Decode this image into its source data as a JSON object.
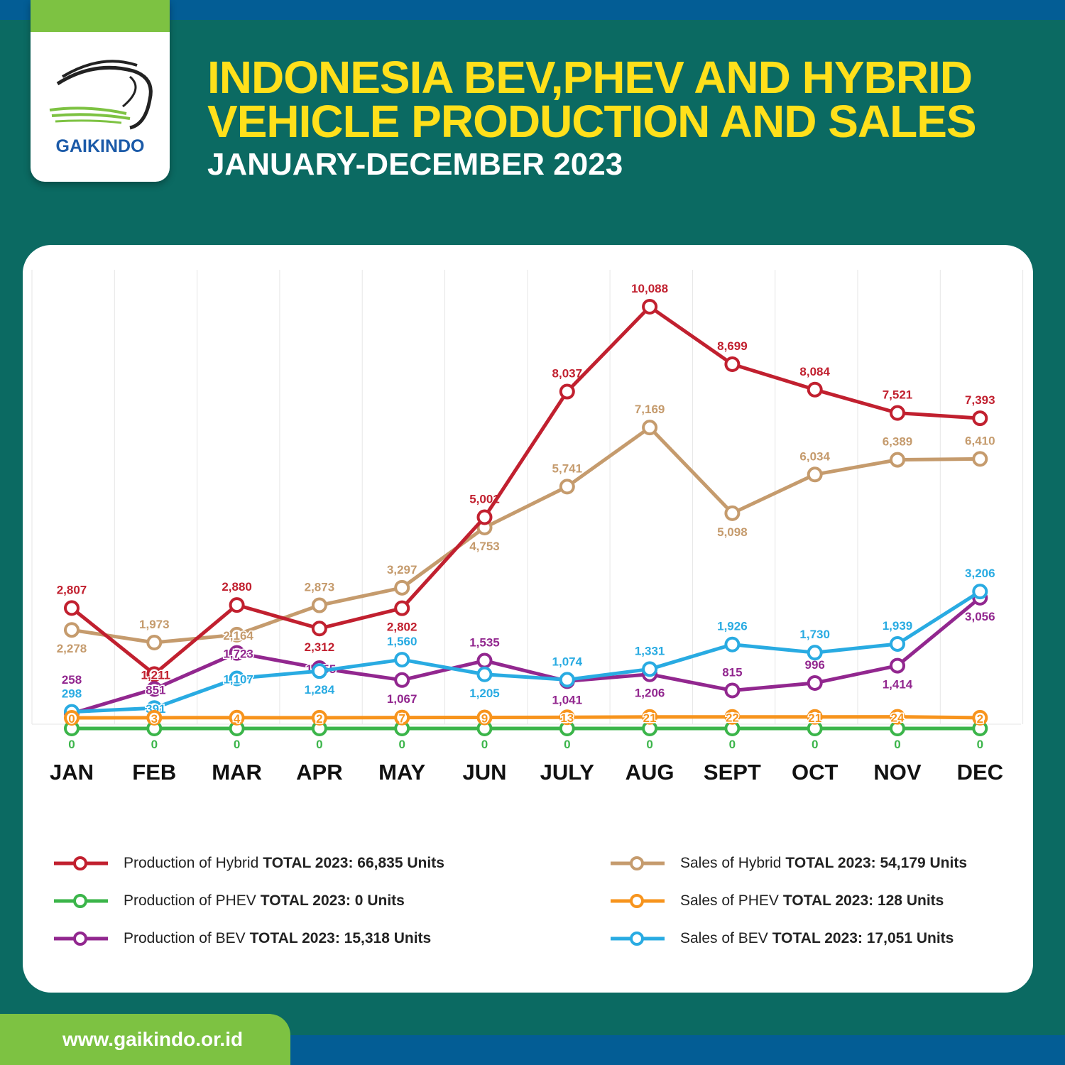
{
  "header": {
    "brand": "GAIKINDO",
    "title_line1": "INDONESIA BEV,PHEV AND HYBRID",
    "title_line2": "VEHICLE PRODUCTION AND SALES",
    "subtitle": "JANUARY-DECEMBER 2023"
  },
  "footer": {
    "url": "www.gaikindo.or.id"
  },
  "colors": {
    "background": "#0b6a62",
    "title": "#ffe01b",
    "accent_green": "#7dc242",
    "accent_blue": "#035d95"
  },
  "chart_data": {
    "type": "line",
    "categories": [
      "JAN",
      "FEB",
      "MAR",
      "APR",
      "MAY",
      "JUN",
      "JULY",
      "AUG",
      "SEPT",
      "OCT",
      "NOV",
      "DEC"
    ],
    "grid": "vertical",
    "ylim": [
      0,
      10088
    ],
    "legend_position": "bottom",
    "series": [
      {
        "name": "Production of Hybrid",
        "total": "TOTAL 2023: 66,835 Units",
        "color": "#c1202f",
        "values": [
          2807,
          1211,
          2880,
          2312,
          2802,
          5001,
          8037,
          10088,
          8699,
          8084,
          7521,
          7393
        ]
      },
      {
        "name": "Sales of Hybrid",
        "total": "TOTAL 2023: 54,179 Units",
        "color": "#c59b6d",
        "values": [
          2278,
          1973,
          2164,
          2873,
          3297,
          4753,
          5741,
          7169,
          5098,
          6034,
          6389,
          6410
        ]
      },
      {
        "name": "Production of PHEV",
        "total": "TOTAL 2023: 0 Units",
        "color": "#3bb54a",
        "values": [
          0,
          0,
          0,
          0,
          0,
          0,
          0,
          0,
          0,
          0,
          0,
          0
        ]
      },
      {
        "name": "Sales of PHEV",
        "total": "TOTAL 2023: 128 Units",
        "color": "#f7941d",
        "values": [
          0,
          3,
          4,
          2,
          7,
          9,
          13,
          21,
          22,
          21,
          24,
          2
        ]
      },
      {
        "name": "Production of BEV",
        "total": "TOTAL 2023: 15,318 Units",
        "color": "#92278f",
        "values": [
          258,
          851,
          1723,
          1355,
          1067,
          1535,
          1041,
          1206,
          815,
          996,
          1414,
          3056
        ]
      },
      {
        "name": "Sales of BEV",
        "total": "TOTAL 2023: 17,051 Units",
        "color": "#29abe2",
        "values": [
          298,
          391,
          1107,
          1284,
          1560,
          1205,
          1074,
          1331,
          1926,
          1730,
          1939,
          3206
        ]
      }
    ]
  }
}
